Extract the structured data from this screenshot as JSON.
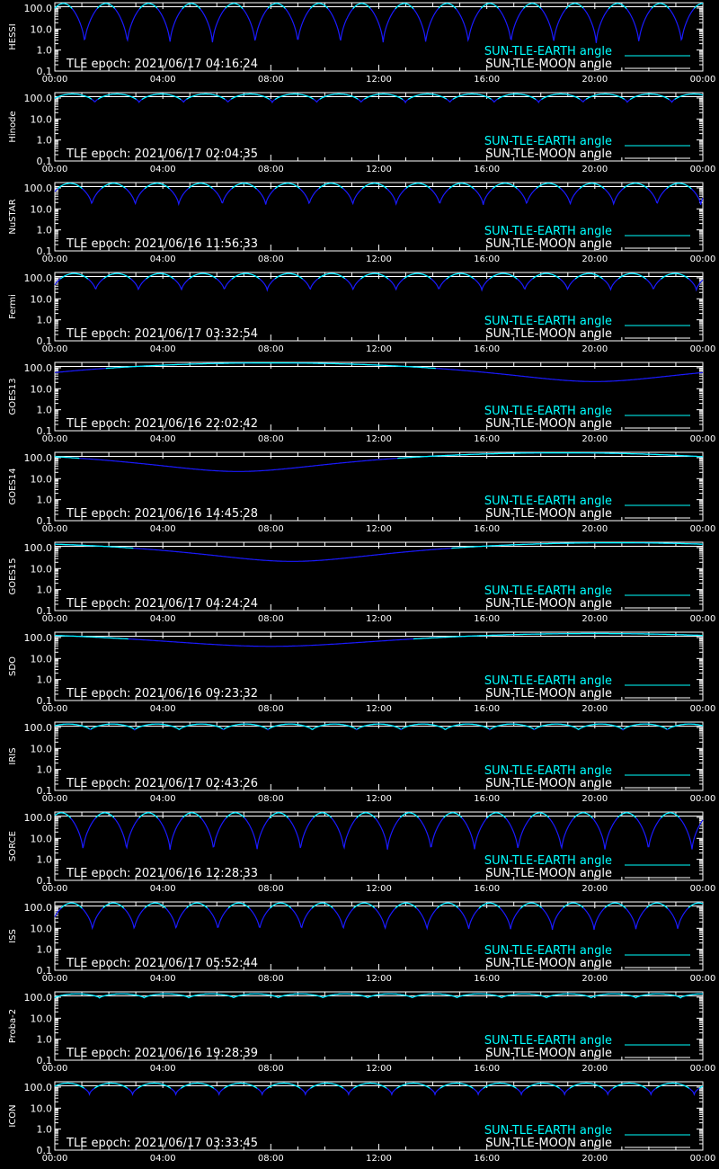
{
  "colors": {
    "background": "#000000",
    "axes": "#ffffff",
    "earth_angle": "#00ffff",
    "blue_curve": "#1a1aff",
    "moon_angle": "#ffffff"
  },
  "shared": {
    "x_tick_labels": [
      "00:00",
      "04:00",
      "08:00",
      "12:00",
      "16:00",
      "20:00",
      "00:00"
    ],
    "y_tick_labels": [
      "100.0",
      "10.0",
      "1.0",
      "0.1"
    ],
    "legend_earth": "SUN-TLE-EARTH angle",
    "legend_moon": "SUN-TLE-MOON angle"
  },
  "chart_data": [
    {
      "type": "line",
      "satellite": "HESSI",
      "epoch_label": "TLE epoch: 2021/06/17 04:16:24",
      "x_unit": "hours",
      "xlim": [
        0,
        24
      ],
      "y_scale": "log",
      "ylim": [
        0.1,
        180
      ],
      "series": [
        {
          "name": "SUN-TLE-EARTH angle",
          "pattern": "orbital",
          "orbits_per_day": 15.2,
          "phase": 0.3,
          "max": 165,
          "min": 2
        },
        {
          "name": "SUN-TLE-MOON angle",
          "pattern": "constant",
          "value": 115
        }
      ]
    },
    {
      "type": "line",
      "satellite": "Hinode",
      "epoch_label": "TLE epoch: 2021/06/17 02:04:35",
      "x_unit": "hours",
      "xlim": [
        0,
        24
      ],
      "y_scale": "log",
      "ylim": [
        0.1,
        180
      ],
      "series": [
        {
          "name": "SUN-TLE-EARTH angle",
          "pattern": "orbital",
          "orbits_per_day": 14.6,
          "phase": 0.1,
          "max": 155,
          "min": 60
        },
        {
          "name": "SUN-TLE-MOON angle",
          "pattern": "constant",
          "value": 115
        }
      ]
    },
    {
      "type": "line",
      "satellite": "NuSTAR",
      "epoch_label": "TLE epoch: 2021/06/16 11:56:33",
      "x_unit": "hours",
      "xlim": [
        0,
        24
      ],
      "y_scale": "log",
      "ylim": [
        0.1,
        180
      ],
      "series": [
        {
          "name": "SUN-TLE-EARTH angle",
          "pattern": "orbital",
          "orbits_per_day": 14.9,
          "phase": 0.15,
          "max": 165,
          "min": 15
        },
        {
          "name": "SUN-TLE-MOON angle",
          "pattern": "constant",
          "value": 115
        }
      ]
    },
    {
      "type": "line",
      "satellite": "Fermi",
      "epoch_label": "TLE epoch: 2021/06/17 03:32:54",
      "x_unit": "hours",
      "xlim": [
        0,
        24
      ],
      "y_scale": "log",
      "ylim": [
        0.1,
        180
      ],
      "series": [
        {
          "name": "SUN-TLE-EARTH angle",
          "pattern": "orbital",
          "orbits_per_day": 15.1,
          "phase": 0.05,
          "max": 160,
          "min": 25
        },
        {
          "name": "SUN-TLE-MOON angle",
          "pattern": "constant",
          "value": 115
        }
      ]
    },
    {
      "type": "line",
      "satellite": "GOES13",
      "epoch_label": "TLE epoch: 2021/06/16 22:02:42",
      "x_unit": "hours",
      "xlim": [
        0,
        24
      ],
      "y_scale": "log",
      "ylim": [
        0.1,
        180
      ],
      "series": [
        {
          "name": "SUN-TLE-EARTH angle",
          "pattern": "geo",
          "peak_hour": 8.0,
          "max": 170,
          "min": 22
        },
        {
          "name": "SUN-TLE-MOON angle",
          "pattern": "constant",
          "value": 115
        }
      ]
    },
    {
      "type": "line",
      "satellite": "GOES14",
      "epoch_label": "TLE epoch: 2021/06/16 14:45:28",
      "x_unit": "hours",
      "xlim": [
        0,
        24
      ],
      "y_scale": "log",
      "ylim": [
        0.1,
        180
      ],
      "series": [
        {
          "name": "SUN-TLE-EARTH angle",
          "pattern": "geo",
          "peak_hour": 18.8,
          "max": 170,
          "min": 22
        },
        {
          "name": "SUN-TLE-MOON angle",
          "pattern": "constant",
          "value": 115
        }
      ]
    },
    {
      "type": "line",
      "satellite": "GOES15",
      "epoch_label": "TLE epoch: 2021/06/17 04:24:24",
      "x_unit": "hours",
      "xlim": [
        0,
        24
      ],
      "y_scale": "log",
      "ylim": [
        0.1,
        180
      ],
      "series": [
        {
          "name": "SUN-TLE-EARTH angle",
          "pattern": "geo",
          "peak_hour": 20.8,
          "max": 170,
          "min": 22
        },
        {
          "name": "SUN-TLE-MOON angle",
          "pattern": "constant",
          "value": 115
        }
      ]
    },
    {
      "type": "line",
      "satellite": "SDO",
      "epoch_label": "TLE epoch: 2021/06/16 09:23:32",
      "x_unit": "hours",
      "xlim": [
        0,
        24
      ],
      "y_scale": "log",
      "ylim": [
        0.1,
        180
      ],
      "series": [
        {
          "name": "SUN-TLE-EARTH angle",
          "pattern": "geo",
          "peak_hour": 20.0,
          "max": 155,
          "min": 38
        },
        {
          "name": "SUN-TLE-MOON angle",
          "pattern": "constant",
          "value": 115
        }
      ]
    },
    {
      "type": "line",
      "satellite": "IRIS",
      "epoch_label": "TLE epoch: 2021/06/17 02:43:26",
      "x_unit": "hours",
      "xlim": [
        0,
        24
      ],
      "y_scale": "log",
      "ylim": [
        0.1,
        180
      ],
      "series": [
        {
          "name": "SUN-TLE-EARTH angle",
          "pattern": "orbital",
          "orbits_per_day": 14.6,
          "phase": 0.2,
          "max": 145,
          "min": 75
        },
        {
          "name": "SUN-TLE-MOON angle",
          "pattern": "constant",
          "value": 115
        }
      ]
    },
    {
      "type": "line",
      "satellite": "SORCE",
      "epoch_label": "TLE epoch: 2021/06/16 12:28:33",
      "x_unit": "hours",
      "xlim": [
        0,
        24
      ],
      "y_scale": "log",
      "ylim": [
        0.1,
        180
      ],
      "series": [
        {
          "name": "SUN-TLE-EARTH angle",
          "pattern": "orbital",
          "orbits_per_day": 14.9,
          "phase": 0.35,
          "max": 165,
          "min": 2.5
        },
        {
          "name": "SUN-TLE-MOON angle",
          "pattern": "constant",
          "value": 115
        }
      ]
    },
    {
      "type": "line",
      "satellite": "ISS",
      "epoch_label": "TLE epoch: 2021/06/17 05:52:44",
      "x_unit": "hours",
      "xlim": [
        0,
        24
      ],
      "y_scale": "log",
      "ylim": [
        0.1,
        180
      ],
      "series": [
        {
          "name": "SUN-TLE-EARTH angle",
          "pattern": "orbital",
          "orbits_per_day": 15.5,
          "phase": 0.1,
          "max": 160,
          "min": 8
        },
        {
          "name": "SUN-TLE-MOON angle",
          "pattern": "constant",
          "value": 115
        }
      ]
    },
    {
      "type": "line",
      "satellite": "Proba-2",
      "epoch_label": "TLE epoch: 2021/06/16 19:28:39",
      "x_unit": "hours",
      "xlim": [
        0,
        24
      ],
      "y_scale": "log",
      "ylim": [
        0.1,
        180
      ],
      "series": [
        {
          "name": "SUN-TLE-EARTH angle",
          "pattern": "orbital",
          "orbits_per_day": 14.5,
          "phase": 0.0,
          "max": 145,
          "min": 92
        },
        {
          "name": "SUN-TLE-MOON angle",
          "pattern": "constant",
          "value": 115
        }
      ]
    },
    {
      "type": "line",
      "satellite": "ICON",
      "epoch_label": "TLE epoch: 2021/06/17 03:33:45",
      "x_unit": "hours",
      "xlim": [
        0,
        24
      ],
      "y_scale": "log",
      "ylim": [
        0.1,
        180
      ],
      "series": [
        {
          "name": "SUN-TLE-EARTH angle",
          "pattern": "orbital",
          "orbits_per_day": 15.0,
          "phase": 0.2,
          "max": 155,
          "min": 45
        },
        {
          "name": "SUN-TLE-MOON angle",
          "pattern": "constant",
          "value": 115
        }
      ]
    }
  ]
}
